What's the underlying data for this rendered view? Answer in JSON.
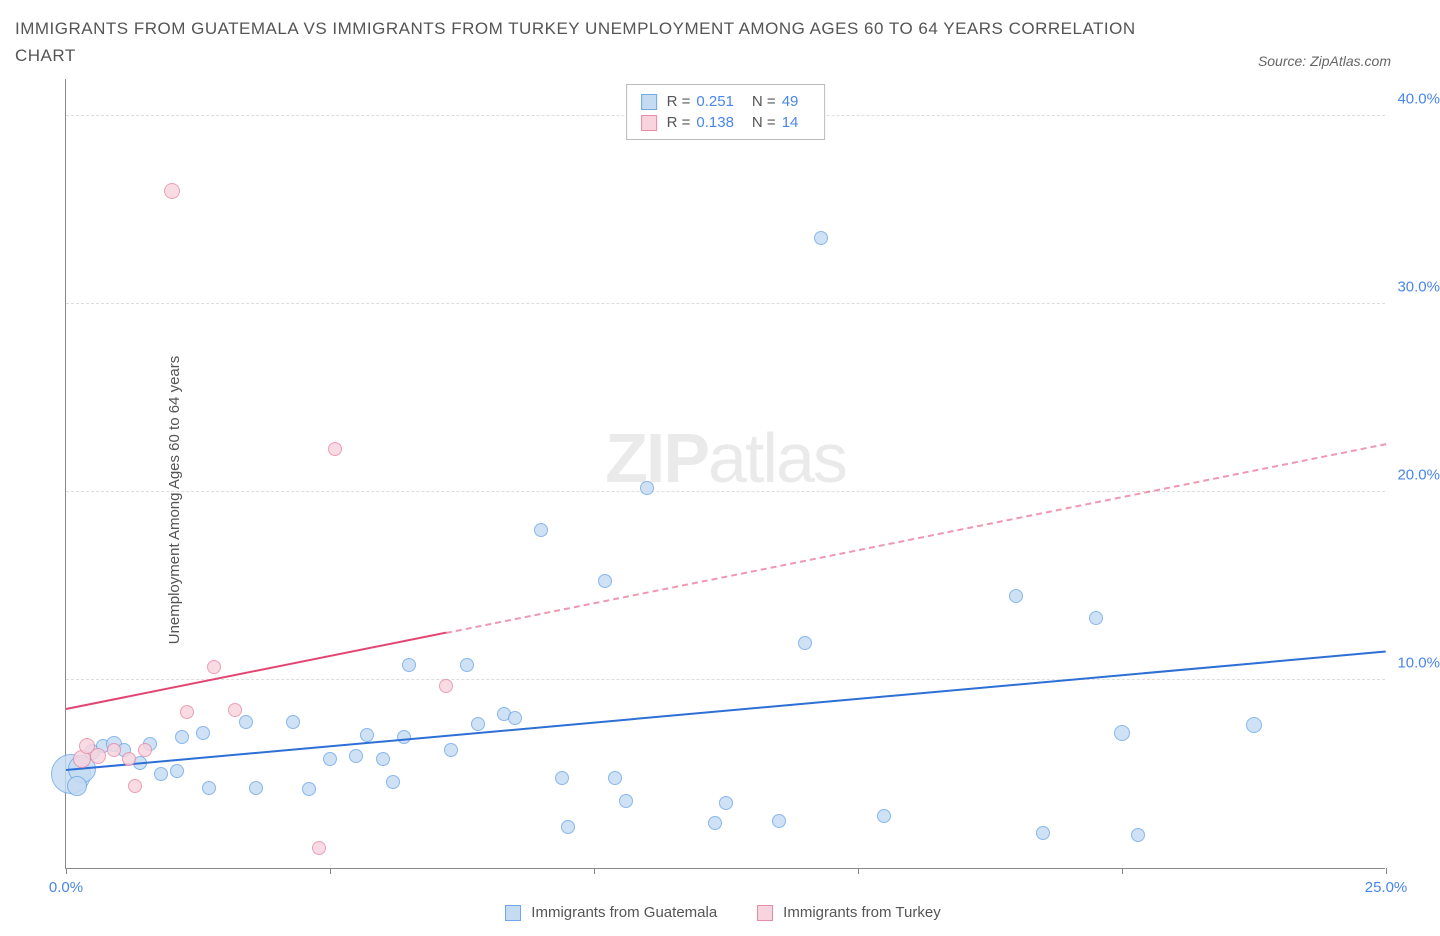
{
  "title": "IMMIGRANTS FROM GUATEMALA VS IMMIGRANTS FROM TURKEY UNEMPLOYMENT AMONG AGES 60 TO 64 YEARS CORRELATION CHART",
  "source": "Source: ZipAtlas.com",
  "y_axis_label": "Unemployment Among Ages 60 to 64 years",
  "watermark_a": "ZIP",
  "watermark_b": "atlas",
  "chart": {
    "type": "scatter",
    "background_color": "#ffffff",
    "grid_color": "#dddddd",
    "axis_color": "#888888",
    "xlim": [
      0,
      25
    ],
    "ylim": [
      0,
      42
    ],
    "x_ticks": [
      0,
      5,
      10,
      15,
      20,
      25
    ],
    "x_tick_labels": [
      "0.0%",
      "",
      "",
      "",
      "",
      "25.0%"
    ],
    "y_ticks": [
      10,
      20,
      30,
      40
    ],
    "y_tick_labels": [
      "10.0%",
      "20.0%",
      "30.0%",
      "40.0%"
    ],
    "series": [
      {
        "name": "Immigrants from Guatemala",
        "fill": "#c5dbf2",
        "stroke": "#6fa8e8",
        "trend_color": "#2e6fd6",
        "stats": {
          "R": "0.251",
          "N": "49"
        },
        "trend": {
          "x1": 0,
          "y1": 5.2,
          "x2": 25,
          "y2": 11.5,
          "solid_end_x": 25
        },
        "points": [
          {
            "x": 0.1,
            "y": 5.0,
            "r": 20
          },
          {
            "x": 0.3,
            "y": 5.3,
            "r": 14
          },
          {
            "x": 0.2,
            "y": 4.4,
            "r": 10
          },
          {
            "x": 0.5,
            "y": 6.2,
            "r": 8
          },
          {
            "x": 0.7,
            "y": 6.5,
            "r": 7
          },
          {
            "x": 0.9,
            "y": 6.6,
            "r": 8
          },
          {
            "x": 1.1,
            "y": 6.3,
            "r": 7
          },
          {
            "x": 1.4,
            "y": 5.6,
            "r": 7
          },
          {
            "x": 1.6,
            "y": 6.6,
            "r": 7
          },
          {
            "x": 1.8,
            "y": 5.0,
            "r": 7
          },
          {
            "x": 2.1,
            "y": 5.2,
            "r": 7
          },
          {
            "x": 2.2,
            "y": 7.0,
            "r": 7
          },
          {
            "x": 2.6,
            "y": 7.2,
            "r": 7
          },
          {
            "x": 2.7,
            "y": 4.3,
            "r": 7
          },
          {
            "x": 3.4,
            "y": 7.8,
            "r": 7
          },
          {
            "x": 3.6,
            "y": 4.3,
            "r": 7
          },
          {
            "x": 4.3,
            "y": 7.8,
            "r": 7
          },
          {
            "x": 4.6,
            "y": 4.2,
            "r": 7
          },
          {
            "x": 5.0,
            "y": 5.8,
            "r": 7
          },
          {
            "x": 5.5,
            "y": 6.0,
            "r": 7
          },
          {
            "x": 5.7,
            "y": 7.1,
            "r": 7
          },
          {
            "x": 6.0,
            "y": 5.8,
            "r": 7
          },
          {
            "x": 6.2,
            "y": 4.6,
            "r": 7
          },
          {
            "x": 6.4,
            "y": 7.0,
            "r": 7
          },
          {
            "x": 6.5,
            "y": 10.8,
            "r": 7
          },
          {
            "x": 7.3,
            "y": 6.3,
            "r": 7
          },
          {
            "x": 7.6,
            "y": 10.8,
            "r": 7
          },
          {
            "x": 7.8,
            "y": 7.7,
            "r": 7
          },
          {
            "x": 8.3,
            "y": 8.2,
            "r": 7
          },
          {
            "x": 8.5,
            "y": 8.0,
            "r": 7
          },
          {
            "x": 9.0,
            "y": 18.0,
            "r": 7
          },
          {
            "x": 9.4,
            "y": 4.8,
            "r": 7
          },
          {
            "x": 9.5,
            "y": 2.2,
            "r": 7
          },
          {
            "x": 10.2,
            "y": 15.3,
            "r": 7
          },
          {
            "x": 10.4,
            "y": 4.8,
            "r": 7
          },
          {
            "x": 10.6,
            "y": 3.6,
            "r": 7
          },
          {
            "x": 11.0,
            "y": 20.2,
            "r": 7
          },
          {
            "x": 12.3,
            "y": 2.4,
            "r": 7
          },
          {
            "x": 12.5,
            "y": 3.5,
            "r": 7
          },
          {
            "x": 13.5,
            "y": 2.5,
            "r": 7
          },
          {
            "x": 14.0,
            "y": 12.0,
            "r": 7
          },
          {
            "x": 14.3,
            "y": 33.5,
            "r": 7
          },
          {
            "x": 15.5,
            "y": 2.8,
            "r": 7
          },
          {
            "x": 18.0,
            "y": 14.5,
            "r": 7
          },
          {
            "x": 18.5,
            "y": 1.9,
            "r": 7
          },
          {
            "x": 19.5,
            "y": 13.3,
            "r": 7
          },
          {
            "x": 20.0,
            "y": 7.2,
            "r": 8
          },
          {
            "x": 20.3,
            "y": 1.8,
            "r": 7
          },
          {
            "x": 22.5,
            "y": 7.6,
            "r": 8
          }
        ]
      },
      {
        "name": "Immigrants from Turkey",
        "fill": "#f7d4de",
        "stroke": "#e88ba8",
        "trend_color": "#e24572",
        "stats": {
          "R": "0.138",
          "N": "14"
        },
        "trend": {
          "x1": 0,
          "y1": 8.4,
          "x2": 25,
          "y2": 22.5,
          "solid_end_x": 7.2
        },
        "points": [
          {
            "x": 0.3,
            "y": 5.8,
            "r": 9
          },
          {
            "x": 0.4,
            "y": 6.5,
            "r": 8
          },
          {
            "x": 0.6,
            "y": 6.0,
            "r": 8
          },
          {
            "x": 0.9,
            "y": 6.3,
            "r": 7
          },
          {
            "x": 1.2,
            "y": 5.8,
            "r": 7
          },
          {
            "x": 1.3,
            "y": 4.4,
            "r": 7
          },
          {
            "x": 1.5,
            "y": 6.3,
            "r": 7
          },
          {
            "x": 2.0,
            "y": 36.0,
            "r": 8
          },
          {
            "x": 2.3,
            "y": 8.3,
            "r": 7
          },
          {
            "x": 2.8,
            "y": 10.7,
            "r": 7
          },
          {
            "x": 3.2,
            "y": 8.4,
            "r": 7
          },
          {
            "x": 4.8,
            "y": 1.1,
            "r": 7
          },
          {
            "x": 5.1,
            "y": 22.3,
            "r": 7
          },
          {
            "x": 7.2,
            "y": 9.7,
            "r": 7
          }
        ]
      }
    ]
  },
  "legend_bottom": [
    {
      "label": "Immigrants from Guatemala",
      "fill": "#c5dbf2",
      "stroke": "#6fa8e8"
    },
    {
      "label": "Immigrants from Turkey",
      "fill": "#f7d4de",
      "stroke": "#e88ba8"
    }
  ]
}
